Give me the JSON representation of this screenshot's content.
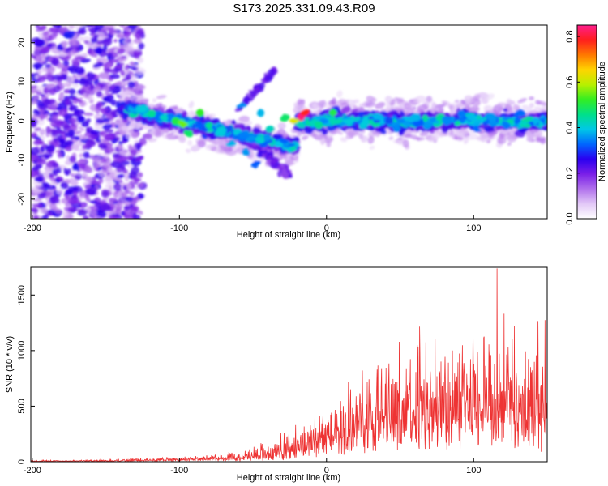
{
  "title": "S173.2025.331.09.43.R09",
  "colors": {
    "snr_line": "#ee3333",
    "colormap": [
      "#ffffff",
      "#e2c8f7",
      "#b070ec",
      "#7a1fe8",
      "#2a00f0",
      "#0066ff",
      "#00c8e6",
      "#00e08a",
      "#33ee22",
      "#b8f000",
      "#ffd400",
      "#ff7800",
      "#ff1e1e",
      "#ff1e8c"
    ]
  },
  "chart_data": [
    {
      "type": "heatmap",
      "xlabel": "Height of straight line (km)",
      "ylabel": "Frequency (Hz)",
      "xlim": [
        -201,
        150
      ],
      "ylim": [
        -25,
        24.5
      ],
      "xticks": [
        -200,
        -100,
        0,
        100
      ],
      "yticks": [
        20,
        10,
        0,
        -10,
        -20
      ],
      "colorbar": {
        "label": "Normalized spectral amplitude",
        "range": [
          0,
          0.85
        ],
        "ticks": [
          0.0,
          0.2,
          0.4,
          0.6,
          0.8
        ]
      },
      "blobs": [
        {
          "x": -195,
          "y": 20,
          "v": 0.25
        },
        {
          "x": -185,
          "y": 15,
          "v": 0.22
        },
        {
          "x": -175,
          "y": 22,
          "v": 0.28
        },
        {
          "x": -165,
          "y": 10,
          "v": 0.24
        },
        {
          "x": -155,
          "y": 18,
          "v": 0.26
        },
        {
          "x": -190,
          "y": 5,
          "v": 0.22
        },
        {
          "x": -180,
          "y": -5,
          "v": 0.25
        },
        {
          "x": -170,
          "y": -12,
          "v": 0.27
        },
        {
          "x": -160,
          "y": -18,
          "v": 0.23
        },
        {
          "x": -150,
          "y": -22,
          "v": 0.22
        },
        {
          "x": -195,
          "y": -15,
          "v": 0.24
        },
        {
          "x": -185,
          "y": -20,
          "v": 0.22
        },
        {
          "x": -130,
          "y": 4,
          "v": 0.3
        },
        {
          "x": -125,
          "y": 3,
          "v": 0.4
        },
        {
          "x": -118,
          "y": 2,
          "v": 0.45
        },
        {
          "x": -110,
          "y": 1,
          "v": 0.42
        },
        {
          "x": -103,
          "y": 0,
          "v": 0.5
        },
        {
          "x": -97,
          "y": -1,
          "v": 0.55
        },
        {
          "x": -94,
          "y": -3,
          "v": 0.48
        },
        {
          "x": -86,
          "y": 2,
          "v": 0.52
        },
        {
          "x": -80,
          "y": -1,
          "v": 0.45
        },
        {
          "x": -72,
          "y": -3,
          "v": 0.4
        },
        {
          "x": -64,
          "y": -6,
          "v": 0.38
        },
        {
          "x": -58,
          "y": 4,
          "v": 0.35
        },
        {
          "x": -54,
          "y": -8,
          "v": 0.36
        },
        {
          "x": -48,
          "y": -11,
          "v": 0.32
        },
        {
          "x": -45,
          "y": 2,
          "v": 0.38
        },
        {
          "x": -38,
          "y": -2,
          "v": 0.42
        },
        {
          "x": -28,
          "y": 1,
          "v": 0.48
        },
        {
          "x": -22,
          "y": 0,
          "v": 0.62
        },
        {
          "x": -18,
          "y": 1,
          "v": 0.84
        },
        {
          "x": -14,
          "y": 2,
          "v": 0.78
        },
        {
          "x": -5,
          "y": -1,
          "v": 0.45
        },
        {
          "x": 5,
          "y": 2,
          "v": 0.5
        },
        {
          "x": 15,
          "y": 0,
          "v": 0.4
        },
        {
          "x": 25,
          "y": -1,
          "v": 0.4
        },
        {
          "x": 35,
          "y": 1,
          "v": 0.38
        },
        {
          "x": 48,
          "y": -2,
          "v": 0.35
        },
        {
          "x": 60,
          "y": 1,
          "v": 0.38
        },
        {
          "x": 70,
          "y": -1,
          "v": 0.36
        },
        {
          "x": 82,
          "y": 0,
          "v": 0.35
        },
        {
          "x": 92,
          "y": 2,
          "v": 0.34
        },
        {
          "x": 102,
          "y": -2,
          "v": 0.33
        },
        {
          "x": 112,
          "y": 1,
          "v": 0.36
        },
        {
          "x": 122,
          "y": -1,
          "v": 0.34
        },
        {
          "x": 132,
          "y": 2,
          "v": 0.33
        },
        {
          "x": 142,
          "y": 0,
          "v": 0.38
        }
      ]
    },
    {
      "type": "line",
      "xlabel": "Height of straight line (km)",
      "ylabel": "SNR (10 * v/v)",
      "xlim": [
        -201,
        150
      ],
      "ylim": [
        0,
        1750
      ],
      "xticks": [
        -200,
        -100,
        0,
        100
      ],
      "yticks": [
        0,
        500,
        1000,
        1500
      ],
      "envelope": {
        "x": [
          -200,
          -150,
          -100,
          -60,
          -40,
          -30,
          -20,
          0,
          20,
          40,
          60,
          80,
          100,
          120,
          150
        ],
        "baseline": [
          5,
          8,
          15,
          30,
          40,
          60,
          130,
          200,
          300,
          400,
          400,
          420,
          420,
          430,
          430
        ],
        "amplitude": [
          10,
          15,
          35,
          80,
          160,
          220,
          260,
          350,
          600,
          800,
          850,
          900,
          950,
          1000,
          950
        ],
        "peak": {
          "x": 116,
          "y": 1740
        }
      }
    }
  ]
}
